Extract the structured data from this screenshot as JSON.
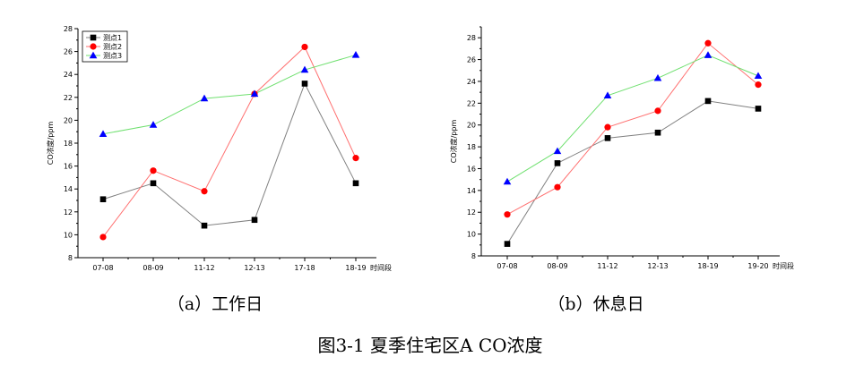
{
  "figure_caption": "图3-1  夏季住宅区A CO浓度",
  "colors": {
    "series_1": "#000000",
    "series_2": "#ff0000",
    "series_3": "#0000ff",
    "line_1": "#808080",
    "line_2": "#ff7070",
    "line_3": "#70e070"
  },
  "chart_data": [
    {
      "type": "line",
      "caption": "（a）工作日",
      "ylabel": "CO浓度/ppm",
      "xunit": "时间段",
      "ylim": [
        8,
        28
      ],
      "yticks": [
        "8",
        "10",
        "12",
        "14",
        "16",
        "18",
        "20",
        "22",
        "24",
        "26",
        "28"
      ],
      "categories": [
        "07-08",
        "08-09",
        "11-12",
        "12-13",
        "17-18",
        "18-19"
      ],
      "legend_position": "top-left",
      "series": [
        {
          "name": "测点1",
          "marker": "square",
          "values": [
            13.1,
            14.5,
            10.8,
            11.3,
            23.2,
            14.5
          ]
        },
        {
          "name": "测点2",
          "marker": "circle",
          "values": [
            9.8,
            15.6,
            13.8,
            22.3,
            26.4,
            16.7
          ]
        },
        {
          "name": "测点3",
          "marker": "triangle",
          "values": [
            18.8,
            19.6,
            21.9,
            22.3,
            24.4,
            25.7
          ]
        }
      ]
    },
    {
      "type": "line",
      "caption": "（b）休息日",
      "ylabel": "CO浓度/ppm",
      "xunit": "时间段",
      "ylim": [
        8,
        29
      ],
      "yticks": [
        "8",
        "10",
        "12",
        "14",
        "16",
        "18",
        "20",
        "22",
        "24",
        "26",
        "28"
      ],
      "categories": [
        "07-08",
        "08-09",
        "11-12",
        "12-13",
        "18-19",
        "19-20"
      ],
      "series": [
        {
          "marker": "square",
          "values": [
            9.1,
            16.5,
            18.8,
            19.3,
            22.2,
            21.5
          ]
        },
        {
          "marker": "circle",
          "values": [
            11.8,
            14.3,
            19.8,
            21.3,
            27.5,
            23.7
          ]
        },
        {
          "marker": "triangle",
          "values": [
            14.8,
            17.6,
            22.7,
            24.3,
            26.4,
            24.5
          ]
        }
      ]
    }
  ]
}
